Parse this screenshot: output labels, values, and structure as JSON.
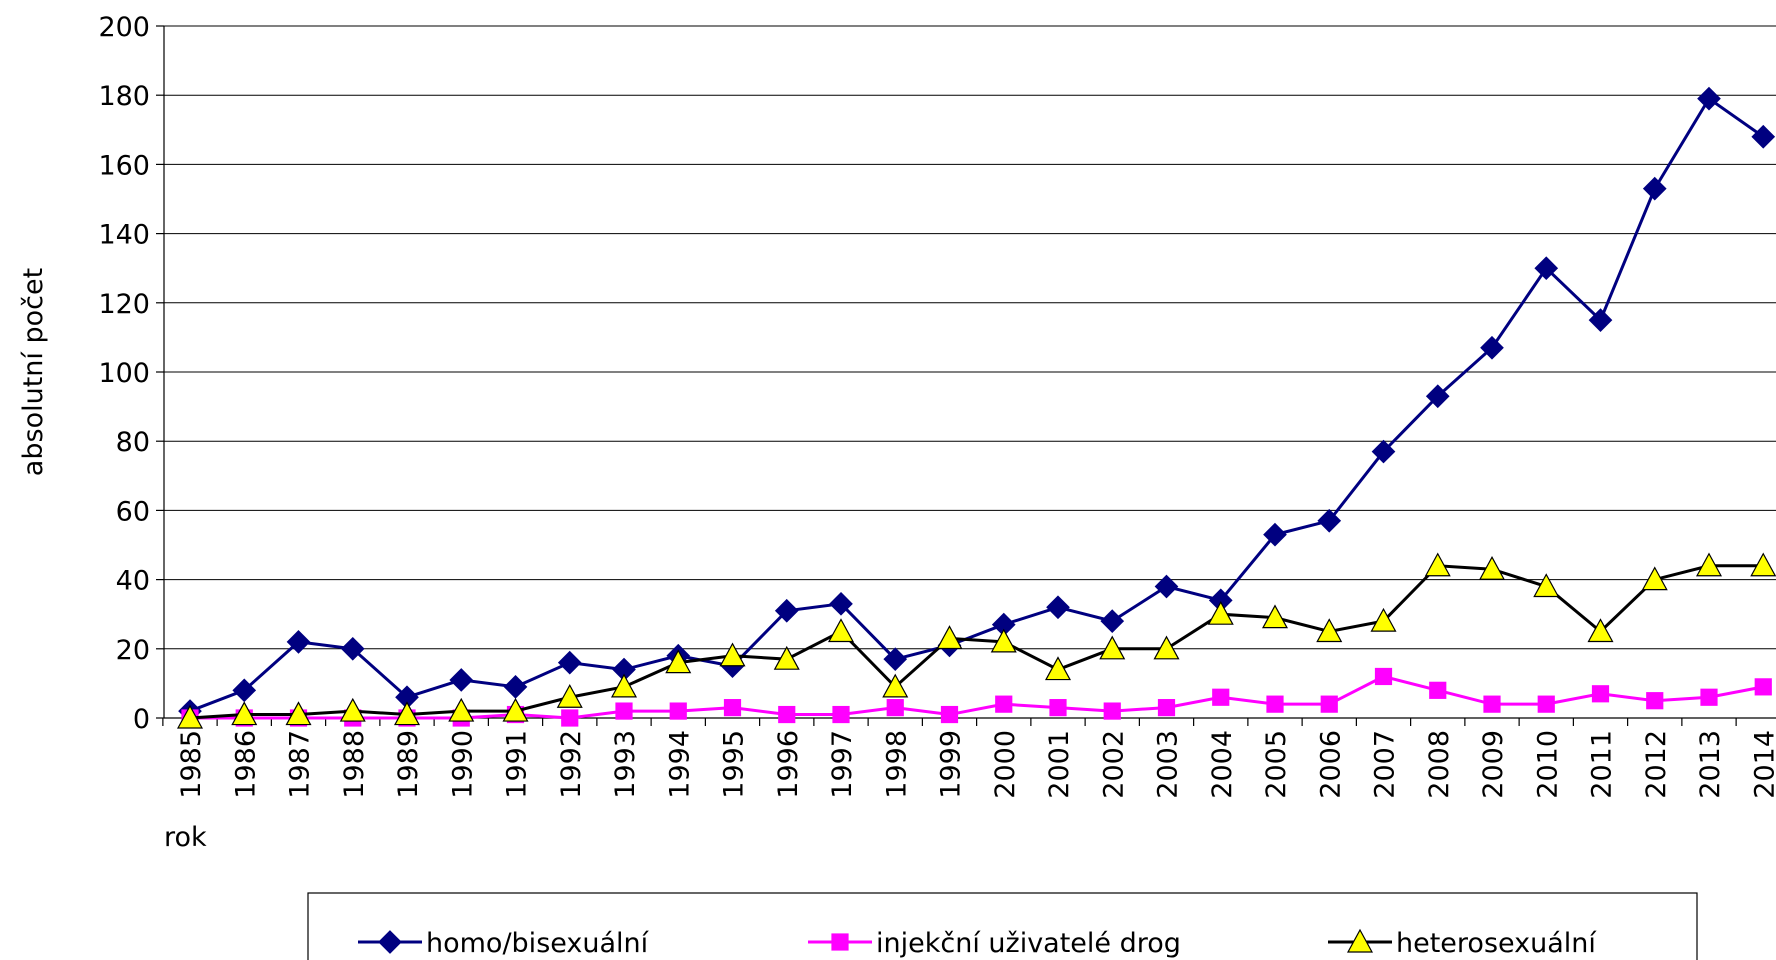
{
  "chart_data": {
    "type": "line",
    "ylabel": "absolutní počet",
    "xlabel": "rok",
    "categories": [
      "1985",
      "1986",
      "1987",
      "1988",
      "1989",
      "1990",
      "1991",
      "1992",
      "1993",
      "1994",
      "1995",
      "1996",
      "1997",
      "1998",
      "1999",
      "2000",
      "2001",
      "2002",
      "2003",
      "2004",
      "2005",
      "2006",
      "2007",
      "2008",
      "2009",
      "2010",
      "2011",
      "2012",
      "2013",
      "2014"
    ],
    "series": [
      {
        "name": "homo/bisexuální",
        "color": "#000080",
        "marker": "diamond",
        "marker_color": "#000080",
        "values": [
          2,
          8,
          22,
          20,
          6,
          11,
          9,
          16,
          14,
          18,
          15,
          31,
          33,
          17,
          21,
          27,
          32,
          28,
          38,
          34,
          53,
          57,
          77,
          93,
          107,
          130,
          115,
          153,
          179,
          168
        ]
      },
      {
        "name": "injekční uživatelé drog",
        "color": "#ff00ff",
        "marker": "square",
        "marker_color": "#ff00ff",
        "values": [
          0,
          0,
          0,
          0,
          0,
          0,
          1,
          0,
          2,
          2,
          3,
          1,
          1,
          3,
          1,
          4,
          3,
          2,
          3,
          6,
          4,
          4,
          12,
          8,
          4,
          4,
          7,
          5,
          6,
          9
        ]
      },
      {
        "name": "heterosexuální",
        "color": "#000000",
        "marker": "triangle",
        "marker_color": "#ffff00",
        "values": [
          0,
          1,
          1,
          2,
          1,
          2,
          2,
          6,
          9,
          16,
          18,
          17,
          25,
          9,
          23,
          22,
          14,
          20,
          20,
          30,
          29,
          25,
          28,
          44,
          43,
          38,
          25,
          40,
          44,
          44
        ]
      }
    ],
    "ylim": [
      0,
      200
    ],
    "yticks": [
      0,
      20,
      40,
      60,
      80,
      100,
      120,
      140,
      160,
      180,
      200
    ],
    "grid": true
  }
}
